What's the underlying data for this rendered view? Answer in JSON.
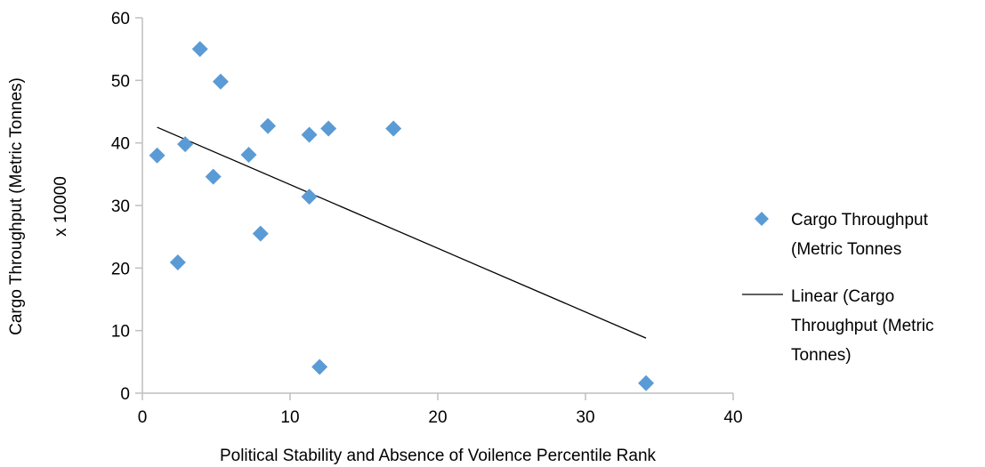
{
  "chart_data": {
    "type": "scatter",
    "xlabel": "Political Stability and Absence of Voilence Percentile Rank",
    "ylabel_line1": "Cargo Throughput  (Metric Tonnes)",
    "ylabel_line2": "x 10000",
    "xlim": [
      0,
      40
    ],
    "ylim": [
      0,
      60
    ],
    "x_ticks": [
      "0",
      "10",
      "20",
      "30",
      "40"
    ],
    "y_ticks": [
      "0",
      "10",
      "20",
      "30",
      "40",
      "50",
      "60"
    ],
    "grid": false,
    "legend_position": "right",
    "series": [
      {
        "name": "Cargo Throughput (Metric Tonnes",
        "legend_lines": [
          "Cargo Throughput",
          "(Metric Tonnes"
        ],
        "color": "#5B9BD5",
        "marker": "diamond",
        "points": [
          {
            "x": 1.0,
            "y": 38.0
          },
          {
            "x": 2.4,
            "y": 20.9
          },
          {
            "x": 2.9,
            "y": 39.8
          },
          {
            "x": 3.9,
            "y": 55.0
          },
          {
            "x": 4.8,
            "y": 34.6
          },
          {
            "x": 5.3,
            "y": 49.8
          },
          {
            "x": 7.2,
            "y": 38.1
          },
          {
            "x": 8.0,
            "y": 25.5
          },
          {
            "x": 8.5,
            "y": 42.7
          },
          {
            "x": 11.3,
            "y": 41.3
          },
          {
            "x": 11.3,
            "y": 31.4
          },
          {
            "x": 12.0,
            "y": 4.2
          },
          {
            "x": 12.6,
            "y": 42.3
          },
          {
            "x": 17.0,
            "y": 42.3
          },
          {
            "x": 34.1,
            "y": 1.6
          }
        ]
      },
      {
        "name": "Linear (Cargo Throughput (Metric Tonnes)",
        "legend_lines": [
          "Linear (Cargo",
          "Throughput (Metric",
          "Tonnes)"
        ],
        "color": "#000000",
        "type": "trendline",
        "x_start": 1.0,
        "y_start": 42.5,
        "x_end": 34.1,
        "y_end": 8.8
      }
    ]
  }
}
